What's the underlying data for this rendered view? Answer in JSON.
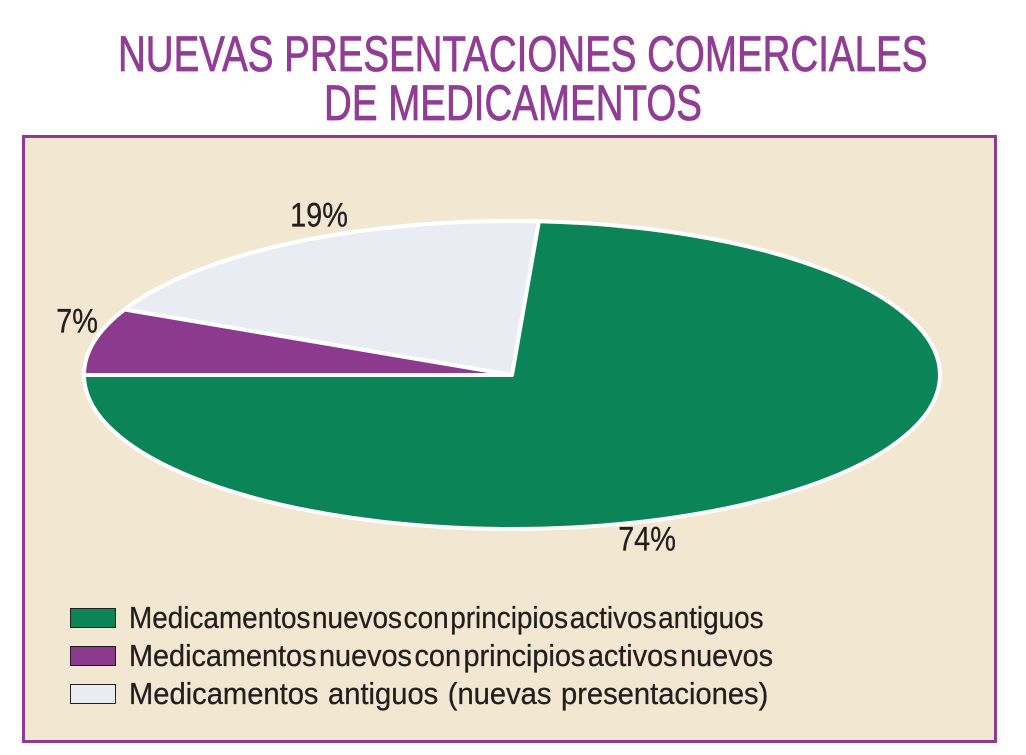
{
  "title": {
    "line1": "NUEVAS PRESENTACIONES COMERCIALES",
    "line2": "DE MEDICAMENTOS"
  },
  "colors": {
    "title_text": "#913c95",
    "panel_border": "#8e3a94",
    "panel_background": "#f2e7d0",
    "slice_stroke": "#ffffff",
    "label_text": "#231f20",
    "legend_text": "#231f20",
    "swatch_border": "#231f20"
  },
  "chart_data": {
    "type": "pie",
    "title": "NUEVAS PRESENTACIONES COMERCIALES DE MEDICAMENTOS",
    "slices": [
      {
        "label": "Medicamentos nuevos con principios activos antiguos",
        "value": 74,
        "pct_label": "74%",
        "color": "#0b8558"
      },
      {
        "label": "Medicamentos nuevos con principios activos nuevos",
        "value": 7,
        "pct_label": "7%",
        "color": "#8c3a8d"
      },
      {
        "label": "Medicamentos antiguos (nuevas presentaciones)",
        "value": 19,
        "pct_label": "19%",
        "color": "#e9edf3"
      }
    ],
    "draw_order": [
      1,
      2,
      0
    ],
    "start_angle_deg": 180,
    "legend_position": "bottom-left"
  }
}
